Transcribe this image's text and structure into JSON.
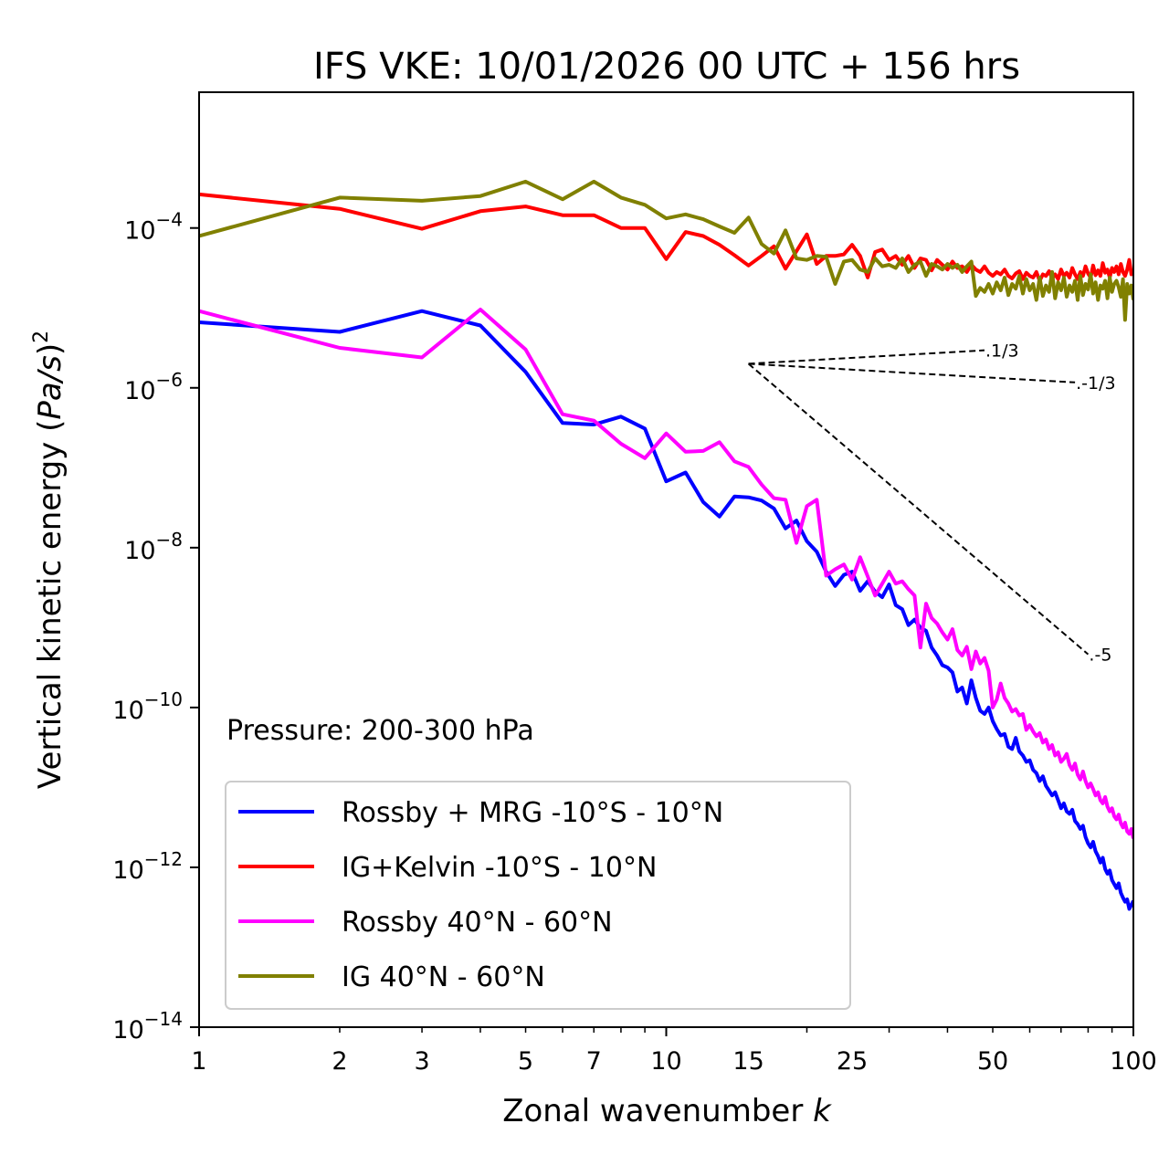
{
  "chart_data": {
    "type": "line",
    "title": "IFS VKE: 10/01/2026 00 UTC + 156 hrs",
    "xlabel": "Zonal wavenumber k",
    "xlabel_main": "Zonal wavenumber ",
    "xlabel_var": "k",
    "ylabel": "Vertical kinetic energy (Pa/s)^2",
    "ylabel_main": "Vertical kinetic energy (",
    "ylabel_var": "Pa/s",
    "ylabel_close": ")",
    "ylabel_exp": "2",
    "xscale": "log",
    "yscale": "log",
    "xlim": [
      1,
      100
    ],
    "ylim": [
      1e-14,
      0.005
    ],
    "grid": false,
    "legend_position": "lower-left",
    "annotation": "Pressure: 200-300 hPa",
    "x_ticks": [
      {
        "value": 1,
        "label": "1"
      },
      {
        "value": 2,
        "label": "2"
      },
      {
        "value": 3,
        "label": "3"
      },
      {
        "value": 5,
        "label": "5"
      },
      {
        "value": 7,
        "label": "7"
      },
      {
        "value": 10,
        "label": "10"
      },
      {
        "value": 15,
        "label": "15"
      },
      {
        "value": 25,
        "label": "25"
      },
      {
        "value": 50,
        "label": "50"
      },
      {
        "value": 100,
        "label": "100"
      }
    ],
    "y_ticks": [
      {
        "value": 0.0001,
        "base": "10",
        "exp": "−4"
      },
      {
        "value": 1e-06,
        "base": "10",
        "exp": "−6"
      },
      {
        "value": 1e-08,
        "base": "10",
        "exp": "−8"
      },
      {
        "value": 1e-10,
        "base": "10",
        "exp": "−10"
      },
      {
        "value": 1e-12,
        "base": "10",
        "exp": "−12"
      },
      {
        "value": 1e-14,
        "base": "10",
        "exp": "−14"
      }
    ],
    "reference_slopes": [
      {
        "label": "1/3",
        "slope": 0.3333,
        "k_start": 15,
        "k_end": 48,
        "y_start": 2e-06
      },
      {
        "label": "-1/3",
        "slope": -0.3333,
        "k_start": 15,
        "k_end": 75,
        "y_start": 2e-06
      },
      {
        "label": "-5",
        "slope": -5,
        "k_start": 15,
        "k_end": 80,
        "y_start": 2e-06
      }
    ],
    "series_value_format": "log10 of energy, one value per wavenumber k = 1..N",
    "series": [
      {
        "name": "Rossby + MRG -10°S - 10°N",
        "color": "#0000ff",
        "log10_values": [
          -5.18,
          -5.3,
          -5.04,
          -5.22,
          -5.8,
          -6.44,
          -6.46,
          -6.36,
          -6.51,
          -7.17,
          -7.06,
          -7.43,
          -7.61,
          -7.36,
          -7.37,
          -7.41,
          -7.51,
          -7.76,
          -7.66,
          -7.92,
          -8.05,
          -8.3,
          -8.48,
          -8.34,
          -8.3,
          -8.54,
          -8.42,
          -8.55,
          -8.62,
          -8.46,
          -8.72,
          -8.77,
          -8.97,
          -8.9,
          -9.0,
          -9.04,
          -9.25,
          -9.35,
          -9.47,
          -9.5,
          -9.56,
          -9.8,
          -9.75,
          -9.95,
          -9.66,
          -9.88,
          -10.04,
          -10.08,
          -10.0,
          -10.17,
          -10.27,
          -10.35,
          -10.33,
          -10.49,
          -10.52,
          -10.38,
          -10.55,
          -10.6,
          -10.68,
          -10.66,
          -10.78,
          -10.82,
          -10.92,
          -10.86,
          -10.98,
          -11.04,
          -11.1,
          -11.06,
          -11.16,
          -11.26,
          -11.2,
          -11.3,
          -11.33,
          -11.28,
          -11.42,
          -11.46,
          -11.52,
          -11.48,
          -11.62,
          -11.7,
          -11.75,
          -11.68,
          -11.8,
          -11.86,
          -11.94,
          -11.88,
          -12.02,
          -12.08,
          -12.04,
          -12.16,
          -12.21,
          -12.26,
          -12.2,
          -12.32,
          -12.38,
          -12.43,
          -12.4,
          -12.52,
          -12.47,
          -12.42
        ]
      },
      {
        "name": "IG+Kelvin -10°S - 10°N",
        "color": "#ff0000",
        "log10_values": [
          -3.58,
          -3.76,
          -4.01,
          -3.79,
          -3.73,
          -3.84,
          -3.84,
          -4.0,
          -4.0,
          -4.39,
          -4.05,
          -4.1,
          -4.21,
          -4.34,
          -4.47,
          -4.35,
          -4.23,
          -4.51,
          -4.29,
          -4.08,
          -4.45,
          -4.35,
          -4.35,
          -4.33,
          -4.21,
          -4.35,
          -4.62,
          -4.3,
          -4.27,
          -4.4,
          -4.35,
          -4.46,
          -4.35,
          -4.5,
          -4.38,
          -4.4,
          -4.53,
          -4.4,
          -4.46,
          -4.52,
          -4.42,
          -4.5,
          -4.48,
          -4.55,
          -4.46,
          -4.52,
          -4.55,
          -4.48,
          -4.56,
          -4.6,
          -4.55,
          -4.58,
          -4.52,
          -4.6,
          -4.63,
          -4.57,
          -4.54,
          -4.64,
          -4.56,
          -4.6,
          -4.62,
          -4.55,
          -4.66,
          -4.58,
          -4.6,
          -4.54,
          -4.63,
          -4.58,
          -4.64,
          -4.52,
          -4.6,
          -4.56,
          -4.62,
          -4.5,
          -4.58,
          -4.64,
          -4.55,
          -4.6,
          -4.48,
          -4.57,
          -4.62,
          -4.47,
          -4.59,
          -4.53,
          -4.6,
          -4.44,
          -4.56,
          -4.52,
          -4.62,
          -4.5,
          -4.55,
          -4.48,
          -4.58,
          -4.45,
          -4.55,
          -4.6,
          -4.52,
          -4.4,
          -4.58,
          -4.55
        ]
      },
      {
        "name": "Rossby 40°N - 60°N",
        "color": "#ff00ff",
        "log10_values": [
          -5.04,
          -5.5,
          -5.62,
          -5.02,
          -5.52,
          -6.33,
          -6.41,
          -6.7,
          -6.88,
          -6.57,
          -6.8,
          -6.79,
          -6.68,
          -6.92,
          -6.99,
          -7.21,
          -7.38,
          -7.4,
          -7.94,
          -7.48,
          -7.4,
          -8.35,
          -8.27,
          -8.21,
          -8.4,
          -8.12,
          -8.36,
          -8.6,
          -8.45,
          -8.3,
          -8.45,
          -8.42,
          -8.52,
          -8.6,
          -9.25,
          -8.7,
          -8.88,
          -8.95,
          -9.06,
          -9.15,
          -9.02,
          -9.28,
          -9.35,
          -9.24,
          -9.52,
          -9.3,
          -9.45,
          -9.38,
          -9.54,
          -10.0,
          -9.9,
          -9.7,
          -9.88,
          -9.95,
          -10.05,
          -10.02,
          -10.1,
          -10.08,
          -10.28,
          -10.22,
          -10.3,
          -10.36,
          -10.32,
          -10.44,
          -10.4,
          -10.52,
          -10.47,
          -10.6,
          -10.56,
          -10.68,
          -10.64,
          -10.58,
          -10.72,
          -10.78,
          -10.7,
          -10.84,
          -10.9,
          -10.8,
          -10.92,
          -11.0,
          -10.95,
          -11.02,
          -11.1,
          -11.06,
          -11.16,
          -11.2,
          -11.12,
          -11.24,
          -11.3,
          -11.26,
          -11.36,
          -11.4,
          -11.34,
          -11.45,
          -11.5,
          -11.44,
          -11.55,
          -11.58,
          -11.52,
          -11.64
        ]
      },
      {
        "name": "IG 40°N - 60°N",
        "color": "#808000",
        "log10_values": [
          -4.1,
          -3.62,
          -3.66,
          -3.6,
          -3.42,
          -3.64,
          -3.42,
          -3.62,
          -3.71,
          -3.88,
          -3.83,
          -3.89,
          -3.98,
          -4.06,
          -3.87,
          -4.2,
          -4.32,
          -4.03,
          -4.38,
          -4.4,
          -4.35,
          -4.36,
          -4.7,
          -4.42,
          -4.4,
          -4.52,
          -4.55,
          -4.38,
          -4.48,
          -4.46,
          -4.5,
          -4.38,
          -4.55,
          -4.46,
          -4.42,
          -4.6,
          -4.45,
          -4.48,
          -4.52,
          -4.45,
          -4.5,
          -4.46,
          -4.55,
          -4.48,
          -4.42,
          -4.85,
          -4.75,
          -4.8,
          -4.7,
          -4.82,
          -4.68,
          -4.78,
          -4.62,
          -4.84,
          -4.7,
          -4.76,
          -4.6,
          -4.82,
          -4.64,
          -4.78,
          -4.7,
          -4.9,
          -4.62,
          -4.85,
          -4.72,
          -4.8,
          -4.55,
          -4.88,
          -4.68,
          -4.78,
          -4.62,
          -4.86,
          -4.72,
          -4.8,
          -4.66,
          -4.9,
          -4.6,
          -4.84,
          -4.7,
          -4.77,
          -4.58,
          -4.82,
          -4.68,
          -4.9,
          -4.72,
          -4.76,
          -4.66,
          -4.88,
          -4.62,
          -4.8,
          -4.7,
          -4.66,
          -4.74,
          -4.86,
          -4.64,
          -5.15,
          -4.7,
          -4.82,
          -4.72,
          -4.9
        ]
      }
    ]
  }
}
